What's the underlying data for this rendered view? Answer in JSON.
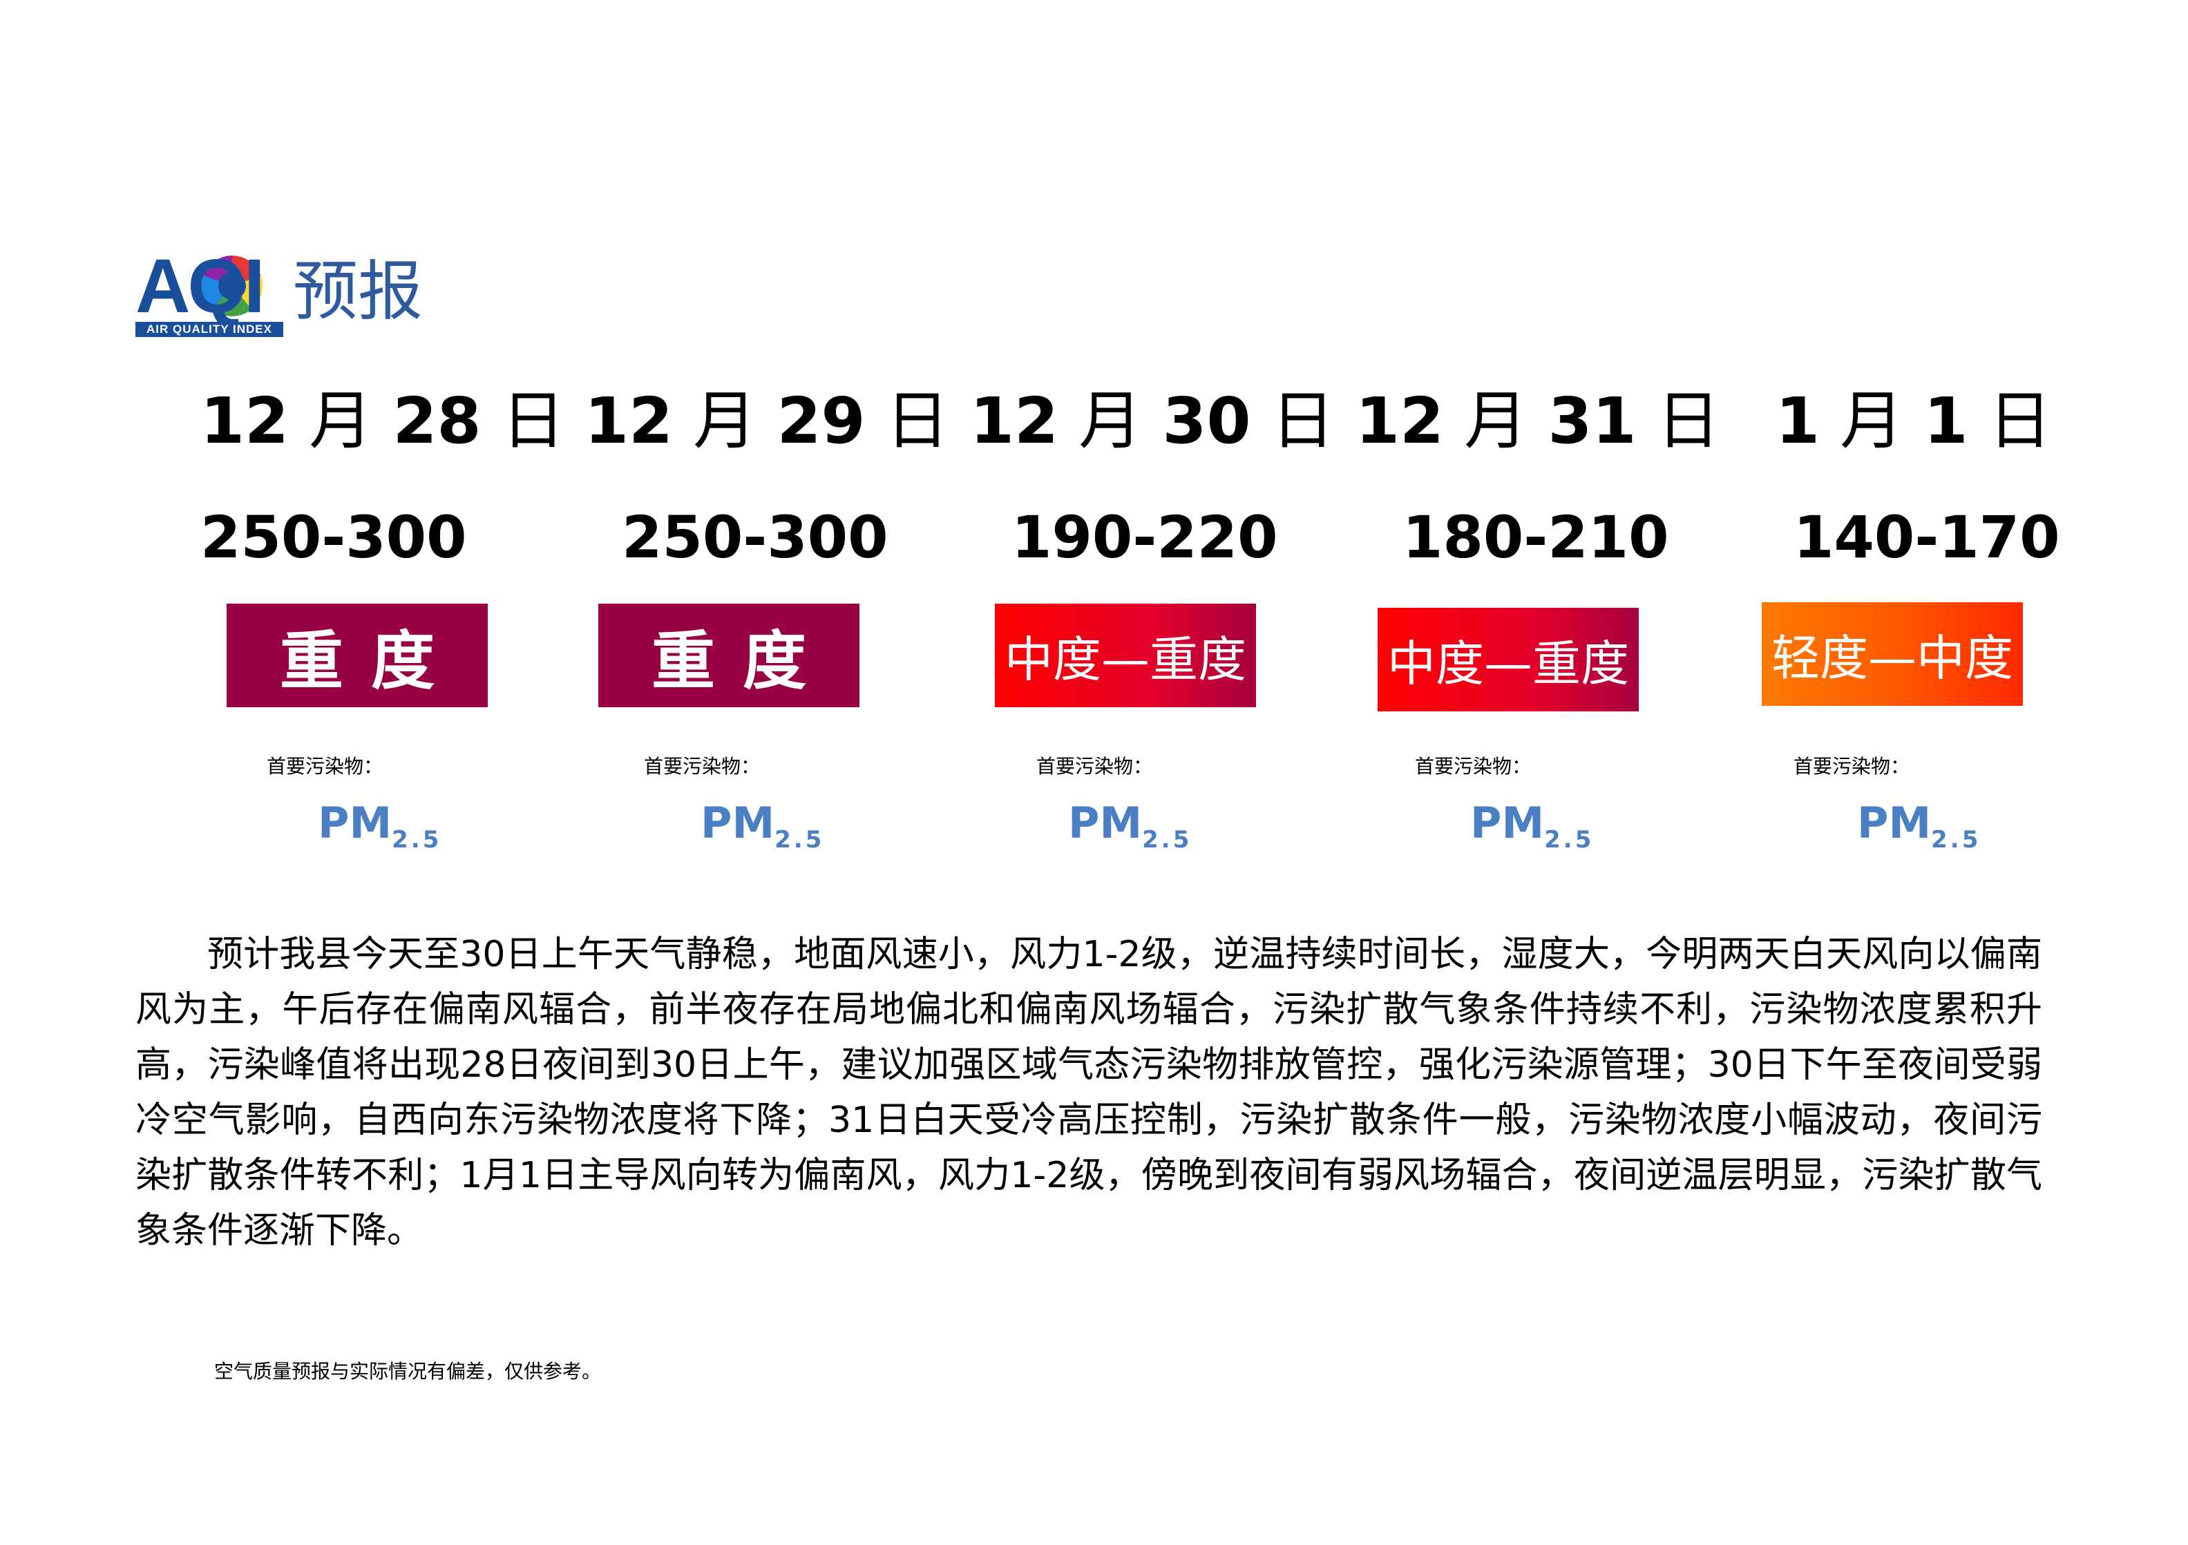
{
  "header": {
    "logo_text": "AQI",
    "logo_subtitle": "AIR QUALITY INDEX",
    "title": "预报"
  },
  "days": [
    {
      "month": "12",
      "month_unit": "月",
      "day": "28",
      "day_unit": "日",
      "range": "250-300",
      "level": "重度",
      "level_color": "#990044",
      "pollutant_label": "首要污染物：",
      "pollutant": "PM",
      "pollutant_sub": "2.5"
    },
    {
      "month": "12",
      "month_unit": "月",
      "day": "29",
      "day_unit": "日",
      "range": "250-300",
      "level": "重度",
      "level_color": "#990044",
      "pollutant_label": "首要污染物：",
      "pollutant": "PM",
      "pollutant_sub": "2.5"
    },
    {
      "month": "12",
      "month_unit": "月",
      "day": "30",
      "day_unit": "日",
      "range": "190-220",
      "level": "中度—重度",
      "level_color": "#ff0000",
      "pollutant_label": "首要污染物：",
      "pollutant": "PM",
      "pollutant_sub": "2.5"
    },
    {
      "month": "12",
      "month_unit": "月",
      "day": "31",
      "day_unit": "日",
      "range": "180-210",
      "level": "中度—重度",
      "level_color": "#ff0000",
      "pollutant_label": "首要污染物：",
      "pollutant": "PM",
      "pollutant_sub": "2.5"
    },
    {
      "month": "1",
      "month_unit": "月",
      "day": "1",
      "day_unit": "日",
      "range": "140-170",
      "level": "轻度—中度",
      "level_color": "#ff6a00",
      "pollutant_label": "首要污染物：",
      "pollutant": "PM",
      "pollutant_sub": "2.5"
    }
  ],
  "description": "预计我县今天至30日上午天气静稳，地面风速小，风力1-2级，逆温持续时间长，湿度大，今明两天白天风向以偏南风为主，午后存在偏南风辐合，前半夜存在局地偏北和偏南风场辐合，污染扩散气象条件持续不利，污染物浓度累积升高，污染峰值将出现28日夜间到30日上午，建议加强区域气态污染物排放管控，强化污染源管理；30日下午至夜间受弱冷空气影响，自西向东污染物浓度将下降；31日白天受冷高压控制，污染扩散条件一般，污染物浓度小幅波动，夜间污染扩散条件转不利；1月1日主导风向转为偏南风，风力1-2级，傍晚到夜间有弱风场辐合，夜间逆温层明显，污染扩散气象条件逐渐下降。",
  "footnote": "空气质量预报与实际情况有偏差，仅供参考。"
}
